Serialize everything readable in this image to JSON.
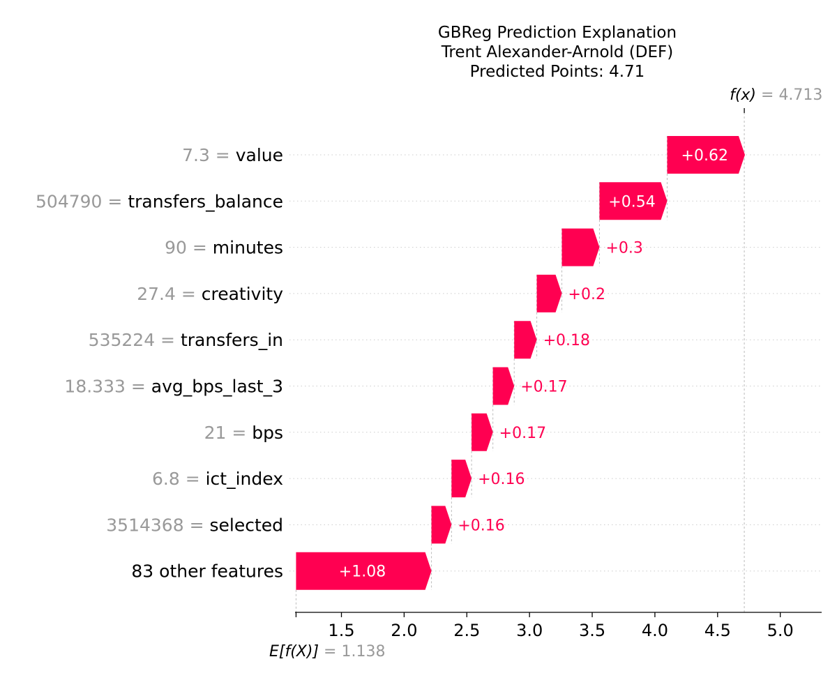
{
  "chart_data": {
    "type": "waterfall",
    "title_lines": [
      "GBReg Prediction Explanation",
      "Trent Alexander-Arnold (DEF)",
      "Predicted Points: 4.71"
    ],
    "base_value": 1.138,
    "base_label": {
      "text": "E[f(X)]",
      "value_text": "1.138"
    },
    "output_value": 4.713,
    "output_label": {
      "text": "f(x)",
      "value_text": "4.713"
    },
    "features": [
      {
        "feature_value": "7.3",
        "name": "value",
        "contribution": 0.62,
        "label": "+0.62"
      },
      {
        "feature_value": "504790",
        "name": "transfers_balance",
        "contribution": 0.54,
        "label": "+0.54"
      },
      {
        "feature_value": "90",
        "name": "minutes",
        "contribution": 0.3,
        "label": "+0.3"
      },
      {
        "feature_value": "27.4",
        "name": "creativity",
        "contribution": 0.2,
        "label": "+0.2"
      },
      {
        "feature_value": "535224",
        "name": "transfers_in",
        "contribution": 0.18,
        "label": "+0.18"
      },
      {
        "feature_value": "18.333",
        "name": "avg_bps_last_3",
        "contribution": 0.17,
        "label": "+0.17"
      },
      {
        "feature_value": "21",
        "name": "bps",
        "contribution": 0.17,
        "label": "+0.17"
      },
      {
        "feature_value": "6.8",
        "name": "ict_index",
        "contribution": 0.16,
        "label": "+0.16"
      },
      {
        "feature_value": "3514368",
        "name": "selected",
        "contribution": 0.16,
        "label": "+0.16"
      },
      {
        "feature_value": "",
        "name": "83 other features",
        "contribution": 1.08,
        "label": "+1.08"
      }
    ],
    "xticks": [
      "1.5",
      "2.0",
      "2.5",
      "3.0",
      "3.5",
      "4.0",
      "4.5",
      "5.0"
    ],
    "xlim": [
      1.13,
      5.33
    ],
    "colors": {
      "positive": "#ff0051",
      "feature_value_text": "#999999",
      "grid": "#cccccc",
      "axis": "#000000"
    }
  }
}
